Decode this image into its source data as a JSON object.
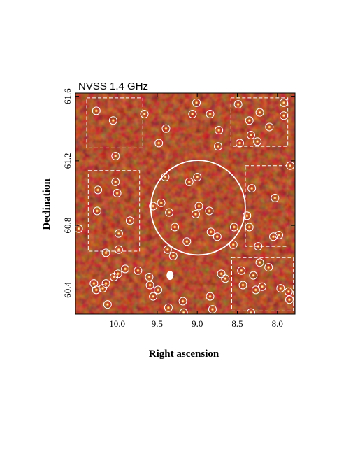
{
  "chart_data": {
    "type": "heatmap",
    "title": "NVSS 1.4 GHz",
    "xlabel": "Right ascension",
    "ylabel": "Declination",
    "xlim": [
      10.52,
      7.78
    ],
    "ylim": [
      60.25,
      61.62
    ],
    "x_ticks": [
      {
        "value": 10.0,
        "label": "10.0"
      },
      {
        "value": 9.5,
        "label": "9.5"
      },
      {
        "value": 9.0,
        "label": "9.0"
      },
      {
        "value": 8.5,
        "label": "8.5"
      },
      {
        "value": 8.0,
        "label": "8.0"
      }
    ],
    "y_ticks": [
      {
        "value": 60.4,
        "label": "60.4"
      },
      {
        "value": 60.8,
        "label": "60.8"
      },
      {
        "value": 61.2,
        "label": "61.2"
      },
      {
        "value": 61.6,
        "label": "61.6"
      }
    ],
    "colormap": [
      "#3a0000",
      "#8a1a0a",
      "#c8501e",
      "#ffd27a",
      "#ffffff"
    ],
    "central_circle": {
      "ra": 8.99,
      "dec": 60.91,
      "radius_deg": 0.59
    },
    "dashed_regions": [
      {
        "ra_min": 9.68,
        "ra_max": 10.38,
        "dec_min": 61.28,
        "dec_max": 61.59
      },
      {
        "ra_min": 7.87,
        "ra_max": 8.58,
        "dec_min": 61.29,
        "dec_max": 61.59
      },
      {
        "ra_min": 9.72,
        "ra_max": 10.36,
        "dec_min": 60.64,
        "dec_max": 61.14
      },
      {
        "ra_min": 7.88,
        "ra_max": 8.4,
        "dec_min": 60.67,
        "dec_max": 61.17
      },
      {
        "ra_min": 7.8,
        "ra_max": 8.57,
        "dec_min": 60.27,
        "dec_max": 60.6
      }
    ],
    "sources": [
      {
        "ra": 10.26,
        "dec": 61.51
      },
      {
        "ra": 10.05,
        "dec": 61.45
      },
      {
        "ra": 9.66,
        "dec": 61.49
      },
      {
        "ra": 9.39,
        "dec": 61.4
      },
      {
        "ra": 9.48,
        "dec": 61.31
      },
      {
        "ra": 9.06,
        "dec": 61.49
      },
      {
        "ra": 9.01,
        "dec": 61.56
      },
      {
        "ra": 8.84,
        "dec": 61.49
      },
      {
        "ra": 8.73,
        "dec": 61.39
      },
      {
        "ra": 8.49,
        "dec": 61.55
      },
      {
        "ra": 8.35,
        "dec": 61.45
      },
      {
        "ra": 8.22,
        "dec": 61.5
      },
      {
        "ra": 7.92,
        "dec": 61.56
      },
      {
        "ra": 7.92,
        "dec": 61.48
      },
      {
        "ra": 8.1,
        "dec": 61.41
      },
      {
        "ra": 8.33,
        "dec": 61.36
      },
      {
        "ra": 8.47,
        "dec": 61.31
      },
      {
        "ra": 8.25,
        "dec": 61.32
      },
      {
        "ra": 8.74,
        "dec": 61.29
      },
      {
        "ra": 10.02,
        "dec": 61.23
      },
      {
        "ra": 10.02,
        "dec": 61.07
      },
      {
        "ra": 10.24,
        "dec": 61.02
      },
      {
        "ra": 10.25,
        "dec": 60.89
      },
      {
        "ra": 10.0,
        "dec": 61.0
      },
      {
        "ra": 9.84,
        "dec": 60.83
      },
      {
        "ra": 9.98,
        "dec": 60.75
      },
      {
        "ra": 10.14,
        "dec": 60.63
      },
      {
        "ra": 9.98,
        "dec": 60.65
      },
      {
        "ra": 10.48,
        "dec": 60.78
      },
      {
        "ra": 9.4,
        "dec": 61.1
      },
      {
        "ra": 9.1,
        "dec": 61.07
      },
      {
        "ra": 9.0,
        "dec": 61.1
      },
      {
        "ra": 9.45,
        "dec": 60.94
      },
      {
        "ra": 9.55,
        "dec": 60.92
      },
      {
        "ra": 9.35,
        "dec": 60.88
      },
      {
        "ra": 9.28,
        "dec": 60.79
      },
      {
        "ra": 8.98,
        "dec": 60.92
      },
      {
        "ra": 9.02,
        "dec": 60.87
      },
      {
        "ra": 8.85,
        "dec": 60.89
      },
      {
        "ra": 8.83,
        "dec": 60.76
      },
      {
        "ra": 8.75,
        "dec": 60.73
      },
      {
        "ra": 8.54,
        "dec": 60.79
      },
      {
        "ra": 8.55,
        "dec": 60.68
      },
      {
        "ra": 9.13,
        "dec": 60.7
      },
      {
        "ra": 9.37,
        "dec": 60.65
      },
      {
        "ra": 9.3,
        "dec": 60.61
      },
      {
        "ra": 8.38,
        "dec": 60.86
      },
      {
        "ra": 8.35,
        "dec": 60.79
      },
      {
        "ra": 8.03,
        "dec": 60.97
      },
      {
        "ra": 8.32,
        "dec": 61.03
      },
      {
        "ra": 7.84,
        "dec": 61.17
      },
      {
        "ra": 8.05,
        "dec": 60.73
      },
      {
        "ra": 7.98,
        "dec": 60.74
      },
      {
        "ra": 8.24,
        "dec": 60.67
      },
      {
        "ra": 8.7,
        "dec": 60.5
      },
      {
        "ra": 8.65,
        "dec": 60.47
      },
      {
        "ra": 8.84,
        "dec": 60.36
      },
      {
        "ra": 8.81,
        "dec": 60.28
      },
      {
        "ra": 8.45,
        "dec": 60.52
      },
      {
        "ra": 8.22,
        "dec": 60.57
      },
      {
        "ra": 8.11,
        "dec": 60.54
      },
      {
        "ra": 8.3,
        "dec": 60.49
      },
      {
        "ra": 8.43,
        "dec": 60.43
      },
      {
        "ra": 8.27,
        "dec": 60.4
      },
      {
        "ra": 8.19,
        "dec": 60.42
      },
      {
        "ra": 7.96,
        "dec": 60.41
      },
      {
        "ra": 7.86,
        "dec": 60.39
      },
      {
        "ra": 7.85,
        "dec": 60.34
      },
      {
        "ra": 8.33,
        "dec": 60.26
      },
      {
        "ra": 9.99,
        "dec": 60.5
      },
      {
        "ra": 10.04,
        "dec": 60.48
      },
      {
        "ra": 10.14,
        "dec": 60.44
      },
      {
        "ra": 10.18,
        "dec": 60.41
      },
      {
        "ra": 10.26,
        "dec": 60.4
      },
      {
        "ra": 10.12,
        "dec": 60.31
      },
      {
        "ra": 10.29,
        "dec": 60.44
      },
      {
        "ra": 9.9,
        "dec": 60.53
      },
      {
        "ra": 9.74,
        "dec": 60.52
      },
      {
        "ra": 9.6,
        "dec": 60.48
      },
      {
        "ra": 9.59,
        "dec": 60.43
      },
      {
        "ra": 9.55,
        "dec": 60.36
      },
      {
        "ra": 9.36,
        "dec": 60.29
      },
      {
        "ra": 9.18,
        "dec": 60.33
      },
      {
        "ra": 9.17,
        "dec": 60.26
      },
      {
        "ra": 9.49,
        "dec": 60.4
      }
    ],
    "bright_blob": {
      "ra": 9.34,
      "dec": 60.49
    }
  }
}
